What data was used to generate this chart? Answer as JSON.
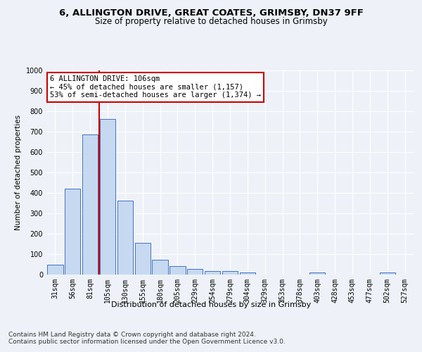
{
  "title1": "6, ALLINGTON DRIVE, GREAT COATES, GRIMSBY, DN37 9FF",
  "title2": "Size of property relative to detached houses in Grimsby",
  "xlabel": "Distribution of detached houses by size in Grimsby",
  "ylabel": "Number of detached properties",
  "bar_categories": [
    "31sqm",
    "56sqm",
    "81sqm",
    "105sqm",
    "130sqm",
    "155sqm",
    "180sqm",
    "205sqm",
    "229sqm",
    "254sqm",
    "279sqm",
    "304sqm",
    "329sqm",
    "353sqm",
    "378sqm",
    "403sqm",
    "428sqm",
    "453sqm",
    "477sqm",
    "502sqm",
    "527sqm"
  ],
  "bar_values": [
    50,
    422,
    685,
    762,
    362,
    155,
    72,
    40,
    28,
    18,
    18,
    10,
    0,
    0,
    0,
    12,
    0,
    0,
    0,
    12,
    0
  ],
  "bar_color": "#c6d9f0",
  "bar_edge_color": "#4472c4",
  "vline_color": "#cc0000",
  "annotation_text": "6 ALLINGTON DRIVE: 106sqm\n← 45% of detached houses are smaller (1,157)\n53% of semi-detached houses are larger (1,374) →",
  "annotation_box_color": "white",
  "annotation_box_edge_color": "#cc0000",
  "ylim": [
    0,
    1000
  ],
  "yticks": [
    0,
    100,
    200,
    300,
    400,
    500,
    600,
    700,
    800,
    900,
    1000
  ],
  "footnote": "Contains HM Land Registry data © Crown copyright and database right 2024.\nContains public sector information licensed under the Open Government Licence v3.0.",
  "background_color": "#eef2f8",
  "grid_color": "#ffffff",
  "title1_fontsize": 9.5,
  "title2_fontsize": 8.5,
  "xlabel_fontsize": 8,
  "ylabel_fontsize": 7.5,
  "tick_fontsize": 7,
  "footnote_fontsize": 6.5,
  "annotation_fontsize": 7.5
}
